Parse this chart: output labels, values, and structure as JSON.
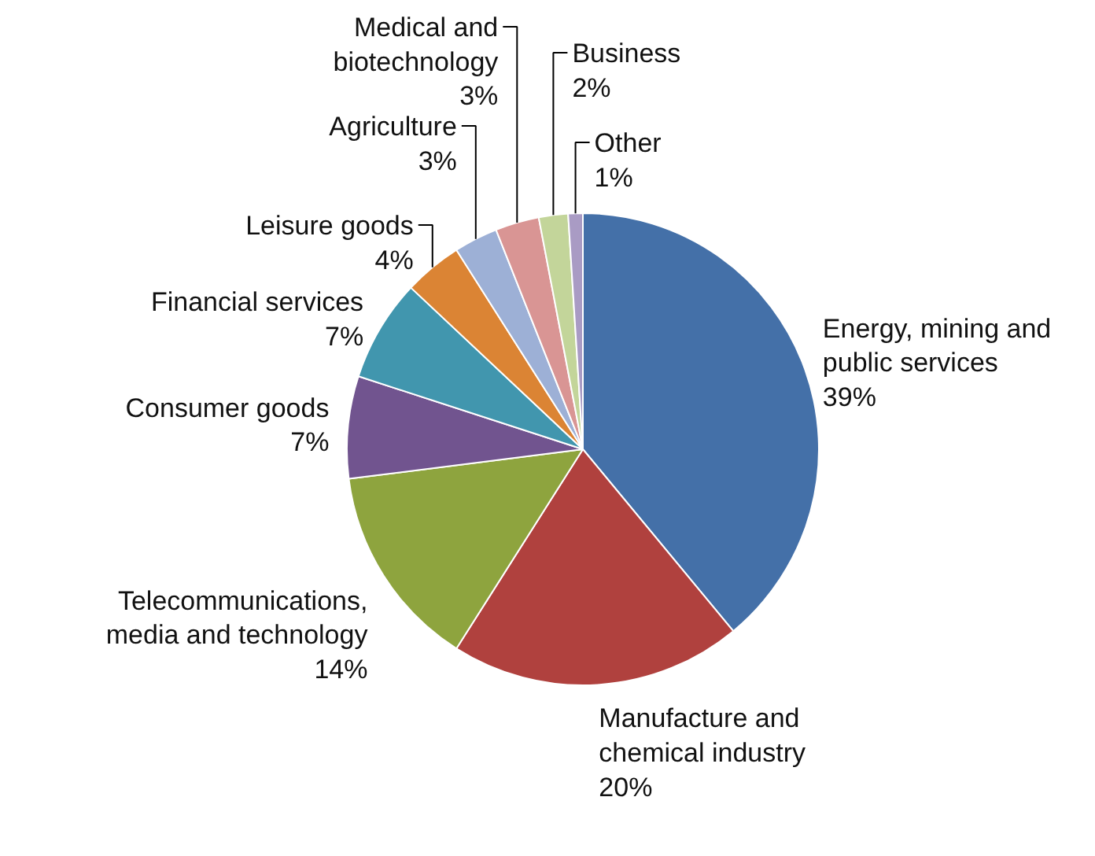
{
  "chart_data": {
    "type": "pie",
    "categories": [
      "Energy, mining and public services",
      "Manufacture and chemical industry",
      "Telecommunications, media and technology",
      "Consumer goods",
      "Financial services",
      "Leisure goods",
      "Agriculture",
      "Medical and biotechnology",
      "Business",
      "Other"
    ],
    "values": [
      39,
      20,
      14,
      7,
      7,
      4,
      3,
      3,
      2,
      1
    ],
    "value_labels": [
      "39%",
      "20%",
      "14%",
      "7%",
      "7%",
      "4%",
      "3%",
      "3%",
      "2%",
      "1%"
    ],
    "colors": [
      "#4470a8",
      "#b0413e",
      "#8ea43e",
      "#71548f",
      "#4196ae",
      "#db8434",
      "#9db0d6",
      "#d99594",
      "#c3d59a",
      "#a99bc4"
    ]
  }
}
